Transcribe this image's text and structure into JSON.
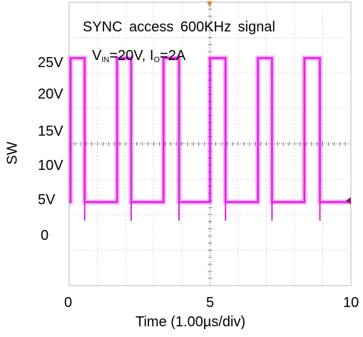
{
  "chart_data": {
    "type": "line",
    "title": "SYNC  access  600KHz  signal",
    "conditions": {
      "vin_label": "V",
      "vin_sub": "IN",
      "vin_value": "=20V, I",
      "io_sub": "O",
      "io_value": "=2A"
    },
    "xlabel": "Time (1.00µs/div)",
    "ylabel": "SW",
    "x_ticks": [
      "0",
      "5",
      "10"
    ],
    "x_tick_values": [
      0,
      5,
      10
    ],
    "y_ticks": [
      "25V",
      "20V",
      "15V",
      "10V",
      "5V",
      "0"
    ],
    "y_tick_values": [
      25,
      20,
      15,
      10,
      5,
      0
    ],
    "xlim": [
      0,
      10
    ],
    "ylim": [
      -11,
      27
    ],
    "grid": true,
    "series": [
      {
        "color": "#e020e0",
        "high_level": 19.5,
        "low_level": 0.2,
        "pulses": [
          {
            "start": 0.05,
            "end": 0.55
          },
          {
            "start": 1.7,
            "end": 2.2
          },
          {
            "start": 3.35,
            "end": 3.9
          },
          {
            "start": 5.0,
            "end": 5.55
          },
          {
            "start": 6.7,
            "end": 7.2
          },
          {
            "start": 8.35,
            "end": 8.9
          }
        ]
      }
    ]
  }
}
